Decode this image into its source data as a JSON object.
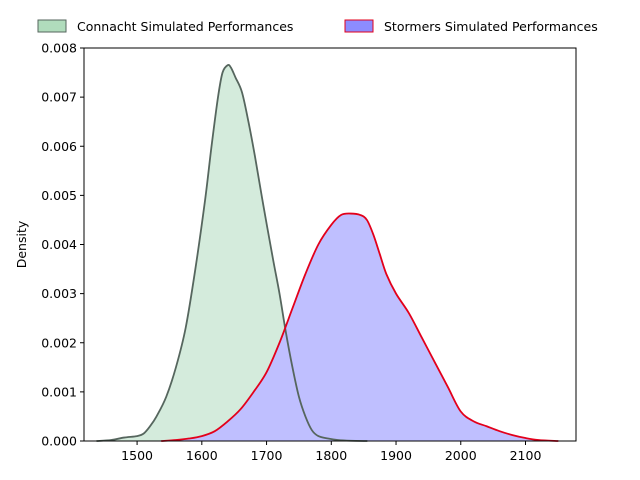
{
  "chart_data": {
    "type": "area",
    "title": "",
    "xlabel": "",
    "ylabel": "Density",
    "xlim": [
      1418,
      2178
    ],
    "ylim": [
      0,
      0.008
    ],
    "xticks": [
      1500,
      1600,
      1700,
      1800,
      1900,
      2000,
      2100
    ],
    "yticks": [
      0,
      0.001,
      0.002,
      0.003,
      0.004,
      0.005,
      0.006,
      0.007,
      0.008
    ],
    "xtick_labels": [
      "1500",
      "1600",
      "1700",
      "1800",
      "1900",
      "2000",
      "2100"
    ],
    "ytick_labels": [
      "0.000",
      "0.001",
      "0.002",
      "0.003",
      "0.004",
      "0.005",
      "0.006",
      "0.007",
      "0.008"
    ],
    "grid": false,
    "legend_position": "top",
    "series": [
      {
        "name": "Connacht Simulated Performances",
        "fill_color": "#d4ebdc",
        "legend_fill_color": "#a7d8b5",
        "line_color": "#56665e",
        "x": [
          1438,
          1460,
          1480,
          1500,
          1510,
          1520,
          1530,
          1545,
          1560,
          1575,
          1590,
          1605,
          1615,
          1625,
          1632,
          1640,
          1645,
          1652,
          1662,
          1672,
          1682,
          1695,
          1710,
          1720,
          1730,
          1740,
          1750,
          1760,
          1770,
          1780,
          1795,
          1810,
          1830,
          1855
        ],
        "y": [
          0,
          2e-05,
          7e-05,
          0.0001,
          0.00015,
          0.0003,
          0.0005,
          0.0009,
          0.0015,
          0.0023,
          0.0035,
          0.0049,
          0.006,
          0.007,
          0.0075,
          0.00765,
          0.0076,
          0.0074,
          0.0071,
          0.0065,
          0.0058,
          0.0048,
          0.0037,
          0.003,
          0.0022,
          0.0015,
          0.0009,
          0.0005,
          0.00022,
          0.0001,
          5e-05,
          2e-05,
          5e-06,
          0
        ]
      },
      {
        "name": "Stormers Simulated Performances",
        "fill_color": "#bfbfff",
        "legend_fill_color": "#8080ff",
        "line_color": "#e3001b",
        "x": [
          1538,
          1560,
          1580,
          1600,
          1620,
          1640,
          1660,
          1680,
          1700,
          1720,
          1740,
          1760,
          1780,
          1800,
          1815,
          1830,
          1845,
          1855,
          1865,
          1875,
          1885,
          1900,
          1920,
          1940,
          1960,
          1980,
          2000,
          2020,
          2040,
          2060,
          2080,
          2100,
          2120,
          2150
        ],
        "y": [
          0,
          2e-05,
          5e-05,
          0.0001,
          0.0002,
          0.0004,
          0.00065,
          0.001,
          0.0014,
          0.002,
          0.0027,
          0.0034,
          0.004,
          0.0044,
          0.0046,
          0.00463,
          0.0046,
          0.0045,
          0.0042,
          0.0038,
          0.0034,
          0.003,
          0.0026,
          0.0021,
          0.0016,
          0.0011,
          0.0006,
          0.0004,
          0.0003,
          0.0002,
          0.00012,
          6e-05,
          2e-05,
          0
        ]
      }
    ]
  }
}
